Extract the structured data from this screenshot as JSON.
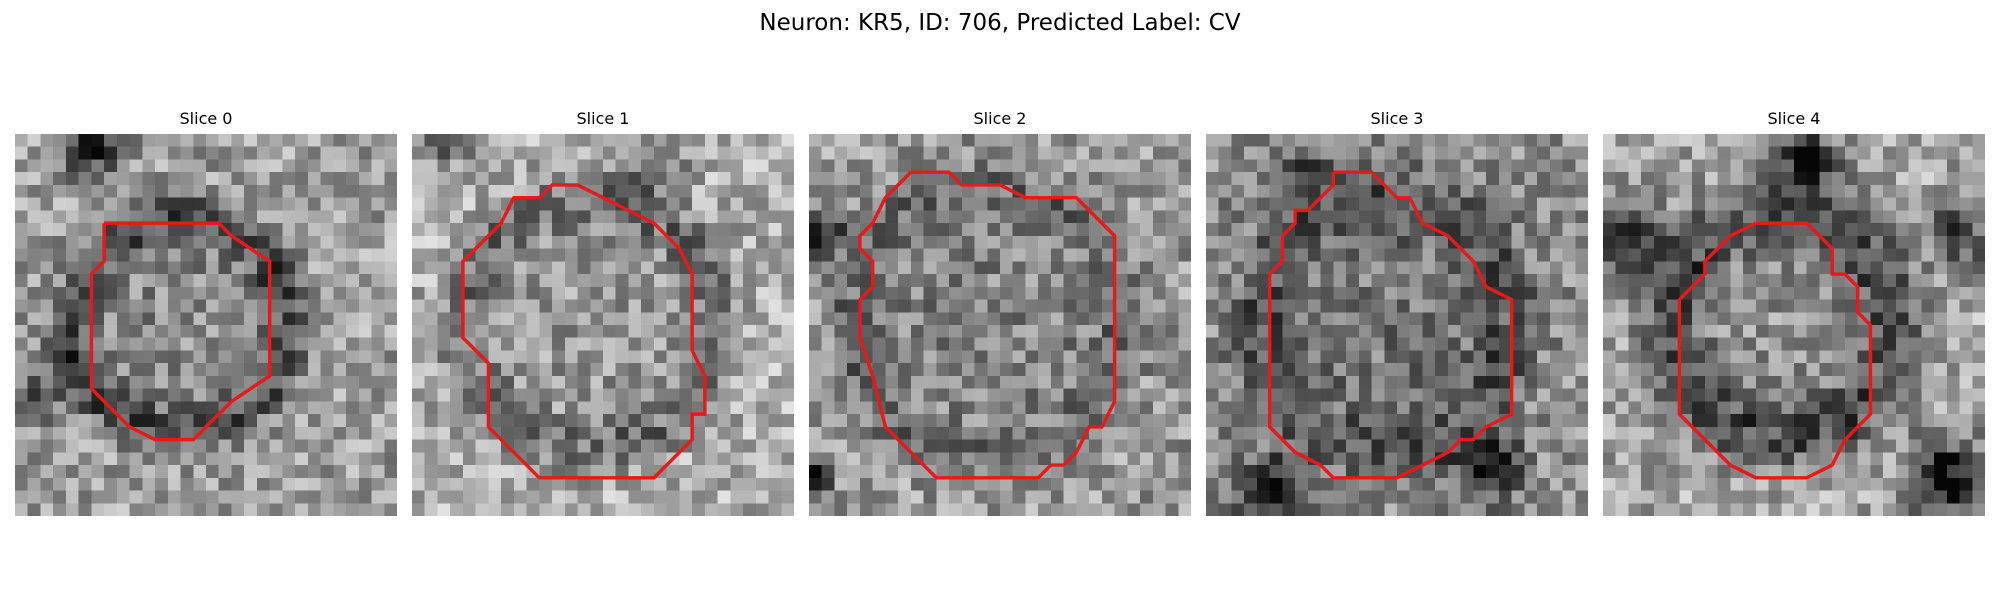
{
  "figure": {
    "title": "Neuron: KR5, ID: 706, Predicted Label: CV"
  },
  "panels": [
    {
      "title": "Slice 0"
    },
    {
      "title": "Slice 1"
    },
    {
      "title": "Slice 2"
    },
    {
      "title": "Slice 3"
    },
    {
      "title": "Slice 4"
    }
  ],
  "colors": {
    "contour": "#e41a1c",
    "background": "#ffffff"
  }
}
